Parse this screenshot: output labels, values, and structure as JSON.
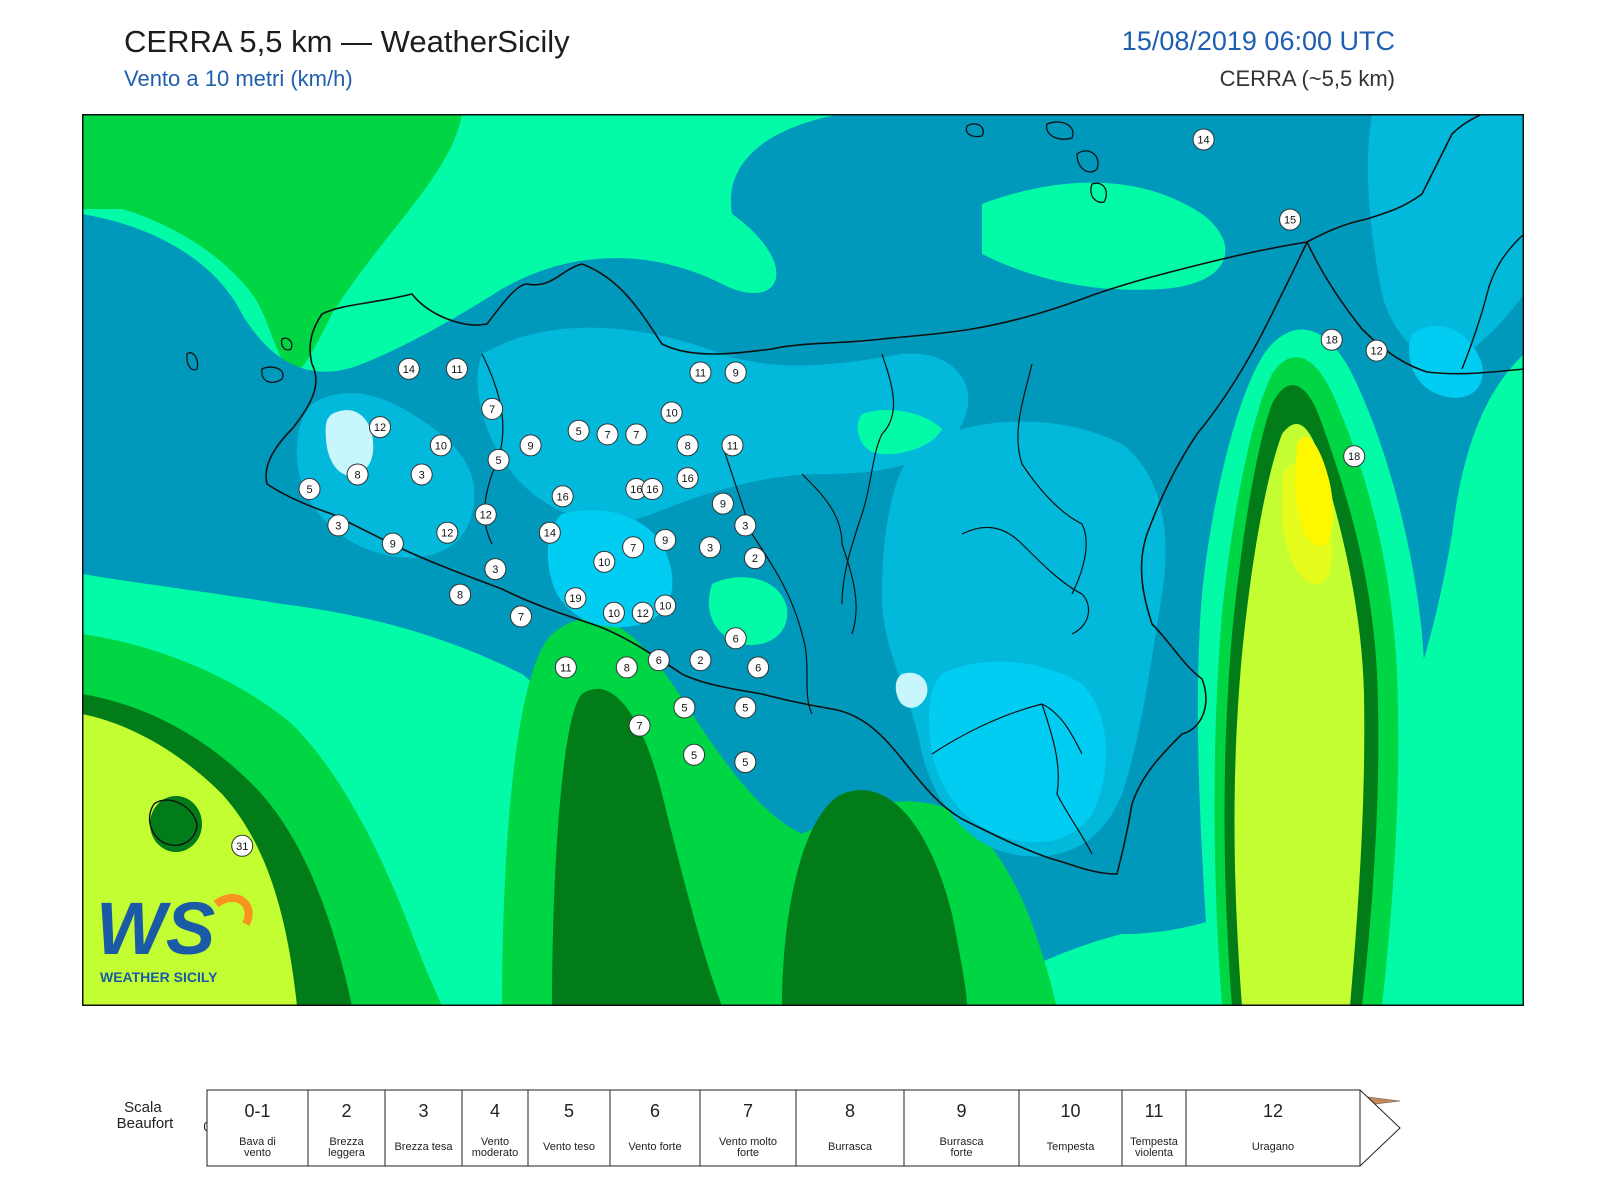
{
  "header": {
    "title": "CERRA 5,5 km — WeatherSicily",
    "subtitle": "Vento a 10 metri (km/h)",
    "datetime": "15/08/2019 06:00 UTC",
    "model": "CERRA (~5,5 km)"
  },
  "logo": {
    "text": "WS",
    "caption": "WEATHER SICILY"
  },
  "colors": {
    "land_border": "#111111",
    "scale": [
      "#c8f6fd",
      "#03e0fd",
      "#01cdf2",
      "#02b8db",
      "#0199bb",
      "#03fba8",
      "#00d544",
      "#017c19",
      "#c2fe32",
      "#e5fc1c",
      "#fdf800",
      "#fdd700",
      "#fda000",
      "#fe7600",
      "#fe4600",
      "#e80000",
      "#c8002a",
      "#a50012",
      "#780000",
      "#4d0000",
      "#7c30d1",
      "#c168d8",
      "#e41fe0",
      "#888888",
      "#5c5c5c",
      "#000000",
      "#7a4125",
      "#c88a52"
    ]
  },
  "scale": {
    "ticks": [
      "0",
      "2",
      "5",
      "7",
      "10",
      "15",
      "20",
      "25",
      "30",
      "35",
      "40",
      "45",
      "50",
      "55",
      "60",
      "65",
      "70",
      "75",
      "80",
      "85",
      "90",
      "95",
      "100",
      "110",
      "120",
      "130",
      "140",
      "150",
      "160"
    ]
  },
  "beaufort": {
    "label": "Scala Beaufort",
    "classes": [
      {
        "num": "0-1",
        "name": "Bava di vento"
      },
      {
        "num": "2",
        "name": "Brezza leggera"
      },
      {
        "num": "3",
        "name": "Brezza tesa"
      },
      {
        "num": "4",
        "name": "Vento moderato"
      },
      {
        "num": "5",
        "name": "Vento teso"
      },
      {
        "num": "6",
        "name": "Vento forte"
      },
      {
        "num": "7",
        "name": "Vento molto forte"
      },
      {
        "num": "8",
        "name": "Burrasca"
      },
      {
        "num": "9",
        "name": "Burrasca forte"
      },
      {
        "num": "10",
        "name": "Tempesta"
      },
      {
        "num": "11",
        "name": "Tempesta violenta"
      },
      {
        "num": "12",
        "name": "Uragano"
      }
    ]
  },
  "stations": [
    {
      "v": "14",
      "lon": 14.95,
      "lat": 38.8
    },
    {
      "v": "15",
      "lon": 15.22,
      "lat": 38.58
    },
    {
      "v": "18",
      "lon": 15.35,
      "lat": 38.25
    },
    {
      "v": "12",
      "lon": 15.49,
      "lat": 38.22
    },
    {
      "v": "18",
      "lon": 15.42,
      "lat": 37.93
    },
    {
      "v": "14",
      "lon": 12.47,
      "lat": 38.17
    },
    {
      "v": "11",
      "lon": 12.62,
      "lat": 38.17
    },
    {
      "v": "7",
      "lon": 12.73,
      "lat": 38.06
    },
    {
      "v": "12",
      "lon": 12.38,
      "lat": 38.01
    },
    {
      "v": "10",
      "lon": 12.57,
      "lat": 37.96
    },
    {
      "v": "9",
      "lon": 12.85,
      "lat": 37.96
    },
    {
      "v": "5",
      "lon": 12.75,
      "lat": 37.92
    },
    {
      "v": "5",
      "lon": 13.0,
      "lat": 38.0
    },
    {
      "v": "7",
      "lon": 13.09,
      "lat": 37.99
    },
    {
      "v": "7",
      "lon": 13.18,
      "lat": 37.99
    },
    {
      "v": "10",
      "lon": 13.29,
      "lat": 38.05
    },
    {
      "v": "11",
      "lon": 13.38,
      "lat": 38.16
    },
    {
      "v": "9",
      "lon": 13.49,
      "lat": 38.16
    },
    {
      "v": "8",
      "lon": 13.34,
      "lat": 37.96
    },
    {
      "v": "11",
      "lon": 13.48,
      "lat": 37.96
    },
    {
      "v": "8",
      "lon": 12.31,
      "lat": 37.88
    },
    {
      "v": "5",
      "lon": 12.16,
      "lat": 37.84
    },
    {
      "v": "3",
      "lon": 12.51,
      "lat": 37.88
    },
    {
      "v": "3",
      "lon": 12.25,
      "lat": 37.74
    },
    {
      "v": "9",
      "lon": 12.42,
      "lat": 37.69
    },
    {
      "v": "16",
      "lon": 12.95,
      "lat": 37.82
    },
    {
      "v": "16",
      "lon": 13.18,
      "lat": 37.84
    },
    {
      "v": "16",
      "lon": 13.23,
      "lat": 37.84
    },
    {
      "v": "16",
      "lon": 13.34,
      "lat": 37.87
    },
    {
      "v": "12",
      "lon": 12.71,
      "lat": 37.77
    },
    {
      "v": "12",
      "lon": 12.59,
      "lat": 37.72
    },
    {
      "v": "14",
      "lon": 12.91,
      "lat": 37.72
    },
    {
      "v": "9",
      "lon": 13.45,
      "lat": 37.8
    },
    {
      "v": "9",
      "lon": 13.27,
      "lat": 37.7
    },
    {
      "v": "3",
      "lon": 13.41,
      "lat": 37.68
    },
    {
      "v": "3",
      "lon": 13.52,
      "lat": 37.74
    },
    {
      "v": "7",
      "lon": 13.17,
      "lat": 37.68
    },
    {
      "v": "10",
      "lon": 13.08,
      "lat": 37.64
    },
    {
      "v": "2",
      "lon": 13.55,
      "lat": 37.65
    },
    {
      "v": "3",
      "lon": 12.74,
      "lat": 37.62
    },
    {
      "v": "8",
      "lon": 12.63,
      "lat": 37.55
    },
    {
      "v": "19",
      "lon": 12.99,
      "lat": 37.54
    },
    {
      "v": "7",
      "lon": 12.82,
      "lat": 37.49
    },
    {
      "v": "10",
      "lon": 13.11,
      "lat": 37.5
    },
    {
      "v": "12",
      "lon": 13.2,
      "lat": 37.5
    },
    {
      "v": "10",
      "lon": 13.27,
      "lat": 37.52
    },
    {
      "v": "6",
      "lon": 13.49,
      "lat": 37.43
    },
    {
      "v": "6",
      "lon": 13.25,
      "lat": 37.37
    },
    {
      "v": "2",
      "lon": 13.38,
      "lat": 37.37
    },
    {
      "v": "6",
      "lon": 13.56,
      "lat": 37.35
    },
    {
      "v": "11",
      "lon": 12.96,
      "lat": 37.35
    },
    {
      "v": "8",
      "lon": 13.15,
      "lat": 37.35
    },
    {
      "v": "5",
      "lon": 13.33,
      "lat": 37.24
    },
    {
      "v": "5",
      "lon": 13.52,
      "lat": 37.24
    },
    {
      "v": "7",
      "lon": 13.19,
      "lat": 37.19
    },
    {
      "v": "5",
      "lon": 13.36,
      "lat": 37.11
    },
    {
      "v": "5",
      "lon": 13.52,
      "lat": 37.09
    },
    {
      "v": "31",
      "lon": 11.95,
      "lat": 36.86
    }
  ]
}
